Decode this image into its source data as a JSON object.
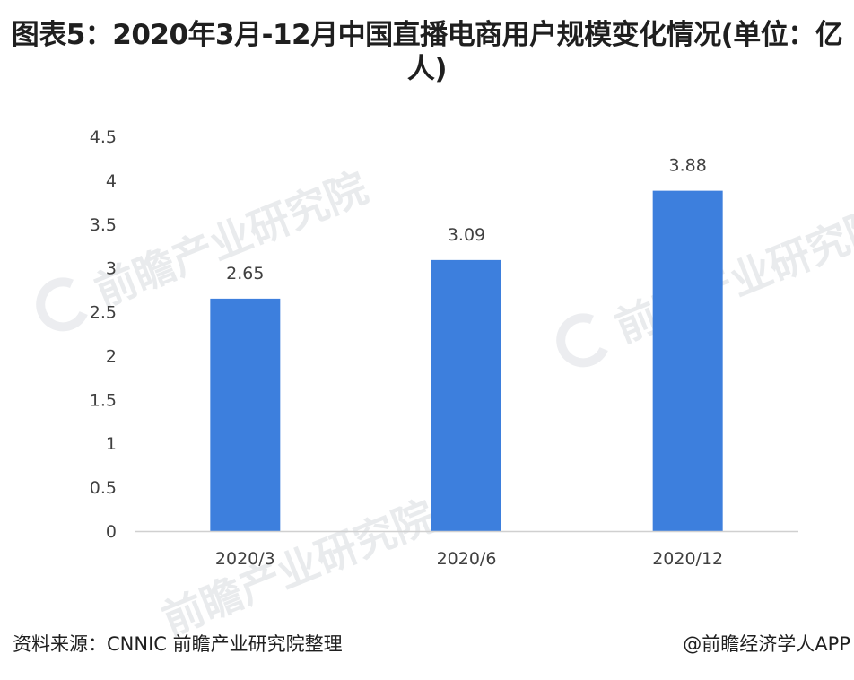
{
  "title": "图表5：2020年3月-12月中国直播电商用户规模变化情况(单位：亿人)",
  "watermark_text": "前瞻产业研究院",
  "footer": {
    "source": "资料来源：CNNIC 前瞻产业研究院整理",
    "credit": "@前瞻经济学人APP"
  },
  "colors": {
    "bar": "#3d7fdd",
    "axis": "#d0d0d0",
    "text": "#404040"
  },
  "chart_data": {
    "type": "bar",
    "title": "图表5：2020年3月-12月中国直播电商用户规模变化情况(单位：亿人)",
    "categories": [
      "2020/3",
      "2020/6",
      "2020/12"
    ],
    "values": [
      2.65,
      3.09,
      3.88
    ],
    "value_labels": [
      "2.65",
      "3.09",
      "3.88"
    ],
    "ylim": [
      0,
      4.5
    ],
    "yticks": [
      0,
      0.5,
      1,
      1.5,
      2,
      2.5,
      3,
      3.5,
      4,
      4.5
    ],
    "ytick_labels": [
      "0",
      "0.5",
      "1",
      "1.5",
      "2",
      "2.5",
      "3",
      "3.5",
      "4",
      "4.5"
    ],
    "xlabel": "",
    "ylabel": "",
    "grid": false,
    "legend": "none"
  }
}
